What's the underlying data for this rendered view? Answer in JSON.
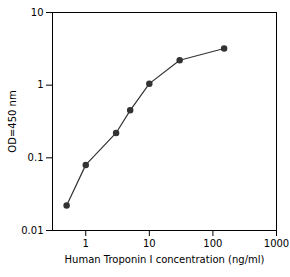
{
  "chart_data": {
    "type": "line",
    "x": [
      0.5,
      1.0,
      3.0,
      5.0,
      10.0,
      30.0,
      150.0
    ],
    "values": [
      0.022,
      0.08,
      0.22,
      0.45,
      1.05,
      2.2,
      3.2
    ],
    "color": "#333333",
    "marker": "circle",
    "line_style": "solid",
    "log": true,
    "grid": false,
    "xlim": [
      0.3,
      1000
    ],
    "ylim": [
      0.01,
      10
    ],
    "xticks": [
      1,
      10,
      100,
      1000
    ],
    "yticks": [
      0.01,
      0.1,
      1,
      10
    ],
    "xlabel": "Human Troponin I concentration (ng/ml)",
    "ylabel": "OD=450 nm"
  }
}
